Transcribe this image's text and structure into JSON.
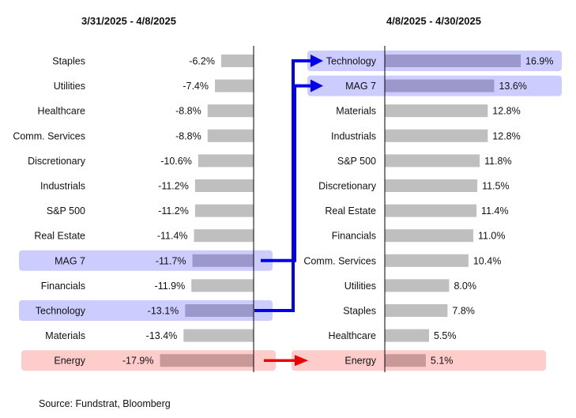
{
  "colors": {
    "bar": "#bfbfbf",
    "highlight_bar": "#9c98cc",
    "highlight_box": "#ccccff",
    "energy_bar": "#c99898",
    "energy_box": "#ffcccc",
    "blue_arrow": "#0000ee",
    "red_arrow": "#ee0000",
    "axis": "#000000"
  },
  "source": "Source: Fundstrat, Bloomberg",
  "chart_data": [
    {
      "type": "bar",
      "orientation": "horizontal",
      "title": "3/31/2025 - 4/8/2025",
      "categories": [
        "Staples",
        "Utilities",
        "Healthcare",
        "Comm. Services",
        "Discretionary",
        "Industrials",
        "S&P 500",
        "Real Estate",
        "MAG 7",
        "Financials",
        "Technology",
        "Materials",
        "Energy"
      ],
      "values": [
        -6.2,
        -7.4,
        -8.8,
        -8.8,
        -10.6,
        -11.2,
        -11.2,
        -11.4,
        -11.7,
        -11.9,
        -13.1,
        -13.4,
        -17.9
      ],
      "labels": [
        "-6.2%",
        "-7.4%",
        "-8.8%",
        "-8.8%",
        "-10.6%",
        "-11.2%",
        "-11.2%",
        "-11.4%",
        "-11.7%",
        "-11.9%",
        "-13.1%",
        "-13.4%",
        "-17.9%"
      ],
      "highlight": {
        "MAG 7": "blue",
        "Technology": "blue",
        "Energy": "red"
      },
      "xlim": [
        -18.5,
        0
      ]
    },
    {
      "type": "bar",
      "orientation": "horizontal",
      "title": "4/8/2025 - 4/30/2025",
      "categories": [
        "Technology",
        "MAG 7",
        "Materials",
        "Industrials",
        "S&P 500",
        "Discretionary",
        "Real Estate",
        "Financials",
        "Comm. Services",
        "Utilities",
        "Staples",
        "Healthcare",
        "Energy"
      ],
      "values": [
        16.9,
        13.6,
        12.8,
        12.8,
        11.8,
        11.5,
        11.4,
        11.0,
        10.4,
        8.0,
        7.8,
        5.5,
        5.1
      ],
      "labels": [
        "16.9%",
        "13.6%",
        "12.8%",
        "12.8%",
        "11.8%",
        "11.5%",
        "11.4%",
        "11.0%",
        "10.4%",
        "8.0%",
        "7.8%",
        "5.5%",
        "5.1%"
      ],
      "highlight": {
        "Technology": "blue",
        "MAG 7": "blue",
        "Energy": "red"
      },
      "xlim": [
        0,
        17.5
      ]
    }
  ]
}
